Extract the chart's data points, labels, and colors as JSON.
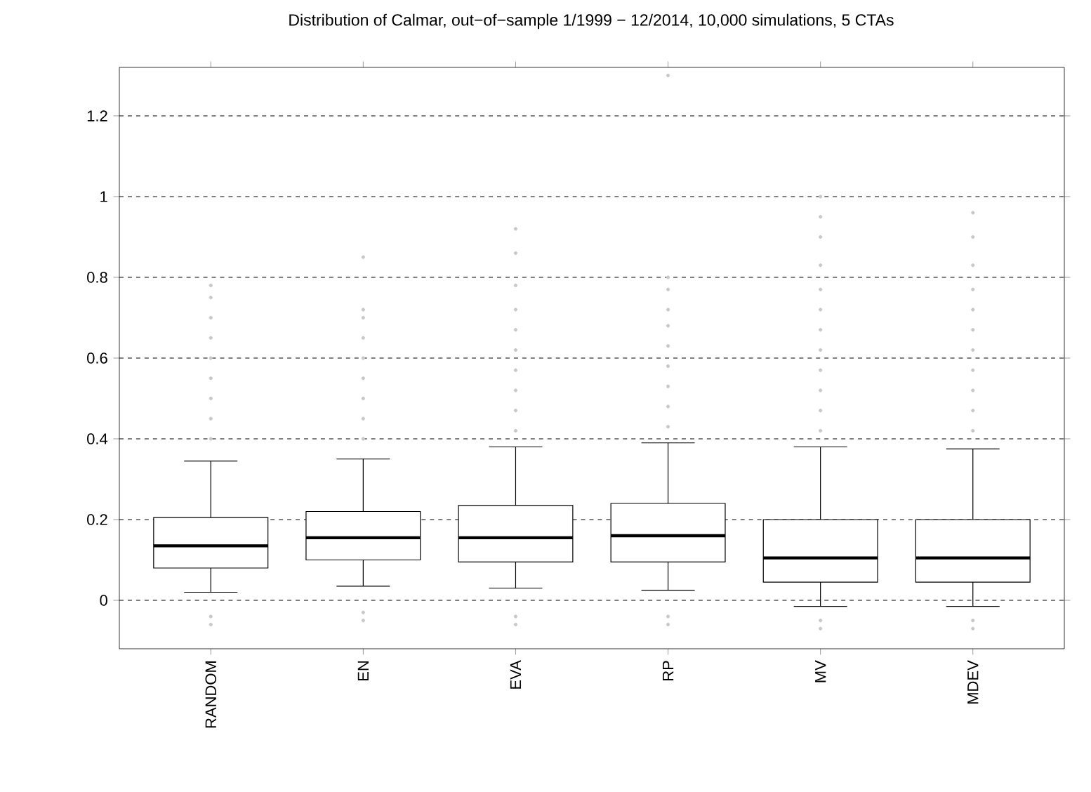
{
  "chart_data": {
    "type": "box",
    "title": "Distribution of Calmar, out−of−sample 1/1999 − 12/2014, 10,000 simulations, 5 CTAs",
    "categories": [
      "RANDOM",
      "EN",
      "EVA",
      "RP",
      "MV",
      "MDEV"
    ],
    "boxes": [
      {
        "low": 0.02,
        "q1": 0.08,
        "median": 0.135,
        "q3": 0.205,
        "high": 0.345,
        "outliers": [
          0.4,
          0.45,
          0.5,
          0.55,
          0.6,
          0.65,
          0.7,
          0.75,
          0.78,
          -0.04,
          -0.06
        ]
      },
      {
        "low": 0.035,
        "q1": 0.1,
        "median": 0.155,
        "q3": 0.22,
        "high": 0.35,
        "outliers": [
          0.4,
          0.45,
          0.5,
          0.55,
          0.6,
          0.65,
          0.7,
          0.72,
          0.85,
          -0.03,
          -0.05
        ]
      },
      {
        "low": 0.03,
        "q1": 0.095,
        "median": 0.155,
        "q3": 0.235,
        "high": 0.38,
        "outliers": [
          0.42,
          0.47,
          0.52,
          0.57,
          0.62,
          0.67,
          0.72,
          0.78,
          0.86,
          0.92,
          -0.04,
          -0.06
        ]
      },
      {
        "low": 0.025,
        "q1": 0.095,
        "median": 0.16,
        "q3": 0.24,
        "high": 0.39,
        "outliers": [
          0.43,
          0.48,
          0.53,
          0.58,
          0.63,
          0.68,
          0.72,
          0.77,
          0.8,
          1.3,
          -0.04,
          -0.06
        ]
      },
      {
        "low": -0.015,
        "q1": 0.045,
        "median": 0.105,
        "q3": 0.2,
        "high": 0.38,
        "outliers": [
          0.42,
          0.47,
          0.52,
          0.57,
          0.62,
          0.67,
          0.72,
          0.77,
          0.83,
          0.9,
          0.95,
          1.0,
          -0.05,
          -0.07
        ]
      },
      {
        "low": -0.015,
        "q1": 0.045,
        "median": 0.105,
        "q3": 0.2,
        "high": 0.375,
        "outliers": [
          0.42,
          0.47,
          0.52,
          0.57,
          0.62,
          0.67,
          0.72,
          0.77,
          0.83,
          0.9,
          0.96,
          -0.05,
          -0.07
        ]
      }
    ],
    "color": "#ffffff",
    "ylim": [
      -0.12,
      1.32
    ],
    "yticks": [
      0,
      0.2,
      0.4,
      0.6,
      0.8,
      1,
      1.2
    ],
    "grid": "y"
  }
}
